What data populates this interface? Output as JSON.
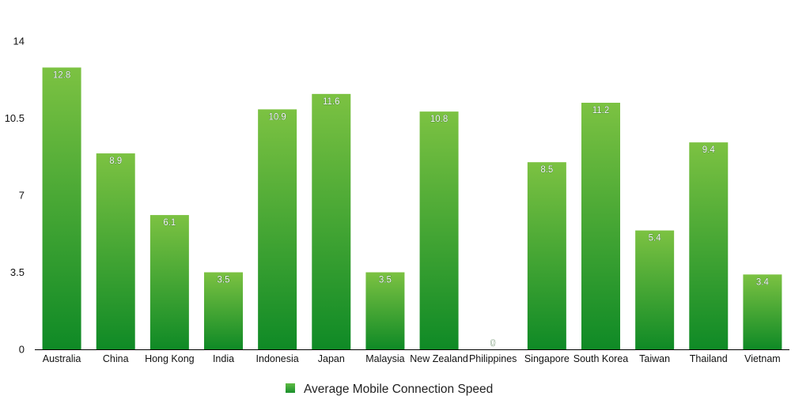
{
  "chart_data": {
    "type": "bar",
    "categories": [
      "Australia",
      "China",
      "Hong Kong",
      "India",
      "Indonesia",
      "Japan",
      "Malaysia",
      "New Zealand",
      "Philippines",
      "Singapore",
      "South Korea",
      "Taiwan",
      "Thailand",
      "Vietnam"
    ],
    "series": [
      {
        "name": "Average Mobile Connection Speed",
        "values": [
          12.8,
          8.9,
          6.1,
          3.5,
          10.9,
          11.6,
          3.5,
          10.8,
          0,
          8.5,
          11.2,
          5.4,
          9.4,
          3.4
        ],
        "labels": [
          "12.8",
          "8.9",
          "6.1",
          "3.5",
          "10.9",
          "11.6",
          "3.5",
          "10.8",
          "0",
          "8.5",
          "11.2",
          "5.4",
          "9.4",
          "3.4"
        ]
      }
    ],
    "yticks": [
      0,
      3.5,
      7,
      10.5,
      14
    ],
    "ytick_labels": [
      "0",
      "3.5",
      "7",
      "10.5",
      "14"
    ],
    "ylim": [
      0,
      14
    ],
    "title": "",
    "xlabel": "",
    "ylabel": "",
    "grid": false,
    "legend_position": "bottom-center",
    "colors": {
      "bar_top": "#7cc242",
      "bar_bottom": "#0f8a26",
      "axis": "#000000",
      "legend_swatch": "#2ea23a"
    }
  }
}
